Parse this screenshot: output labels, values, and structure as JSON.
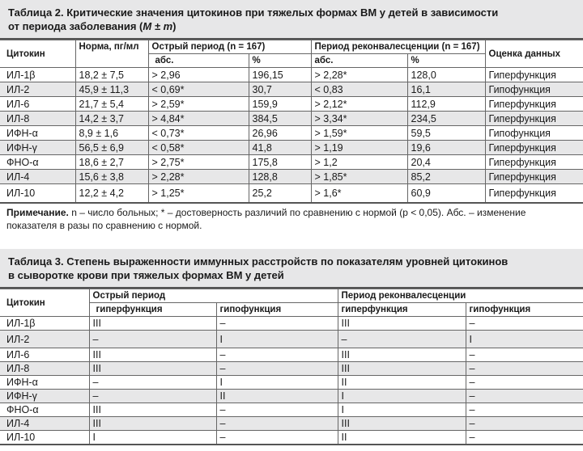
{
  "table2": {
    "title": "Таблица 2. Критические значения цитокинов при тяжелых формах ВМ у детей в зависимости",
    "title_line2": "от периода заболевания (",
    "title_math": "M ± m",
    "title_end": ")",
    "headers": {
      "cytokine": "Цитокин",
      "norm": "Норма, пг/мл",
      "acute": "Острый период (n = 167)",
      "convalescence": "Период реконвалесценции (n = 167)",
      "assessment": "Оценка данных",
      "abs": "абс.",
      "pct": "%"
    },
    "rows": [
      [
        "ИЛ-1β",
        "18,2 ± 7,5",
        "> 2,96",
        "196,15",
        "> 2,28*",
        "128,0",
        "Гиперфункция"
      ],
      [
        "ИЛ-2",
        "45,9 ± 11,3",
        "< 0,69*",
        "30,7",
        "< 0,83",
        "16,1",
        "Гипофункция"
      ],
      [
        "ИЛ-6",
        "21,7 ± 5,4",
        "> 2,59*",
        "159,9",
        "> 2,12*",
        "112,9",
        "Гиперфункция"
      ],
      [
        "ИЛ-8",
        "14,2 ± 3,7",
        "> 4,84*",
        "384,5",
        "> 3,34*",
        "234,5",
        "Гиперфункция"
      ],
      [
        "ИФН-α",
        "8,9 ± 1,6",
        "< 0,73*",
        "26,96",
        "> 1,59*",
        "59,5",
        "Гипофункция"
      ],
      [
        "ИФН-γ",
        "56,5 ± 6,9",
        "< 0,58*",
        "41,8",
        "> 1,19",
        "19,6",
        "Гиперфункция"
      ],
      [
        "ФНО-α",
        "18,6 ± 2,7",
        "> 2,75*",
        "175,8",
        "> 1,2",
        "20,4",
        "Гиперфункция"
      ],
      [
        "ИЛ-4",
        "15,6 ± 3,8",
        "> 2,28*",
        "128,8",
        "> 1,85*",
        "85,2",
        "Гиперфункция"
      ],
      [
        "ИЛ-10",
        "12,2 ± 4,2",
        "> 1,25*",
        "25,2",
        "> 1,6*",
        "60,9",
        "Гиперфункция"
      ]
    ],
    "note_label": "Примечание.",
    "note_text": " n – число больных; * – достоверность различий по сравнению с нормой (p < 0,05). Абс. – изменение показателя в разы по сравнению с нормой."
  },
  "table3": {
    "title": "Таблица 3. Степень выраженности иммунных расстройств по показателям уровней цитокинов",
    "title_line2": "в сыворотке крови при тяжелых формах ВМ у детей",
    "headers": {
      "cytokine": "Цитокин",
      "acute": "Острый период",
      "convalescence": "Период реконвалесценции",
      "hyper": "гиперфункция",
      "hypo": "гипофункция"
    },
    "rows": [
      [
        "ИЛ-1β",
        "III",
        "–",
        "III",
        "–"
      ],
      [
        "ИЛ-2",
        "–",
        "I",
        "–",
        "I"
      ],
      [
        "ИЛ-6",
        "III",
        "–",
        "III",
        "–"
      ],
      [
        "ИЛ-8",
        "III",
        "–",
        "III",
        "–"
      ],
      [
        "ИФН-α",
        "–",
        "I",
        "II",
        "–"
      ],
      [
        "ИФН-γ",
        "–",
        "II",
        "I",
        "–"
      ],
      [
        "ФНО-α",
        "III",
        "–",
        "I",
        "–"
      ],
      [
        "ИЛ-4",
        "III",
        "–",
        "III",
        "–"
      ],
      [
        "ИЛ-10",
        "I",
        "–",
        "II",
        "–"
      ]
    ]
  }
}
